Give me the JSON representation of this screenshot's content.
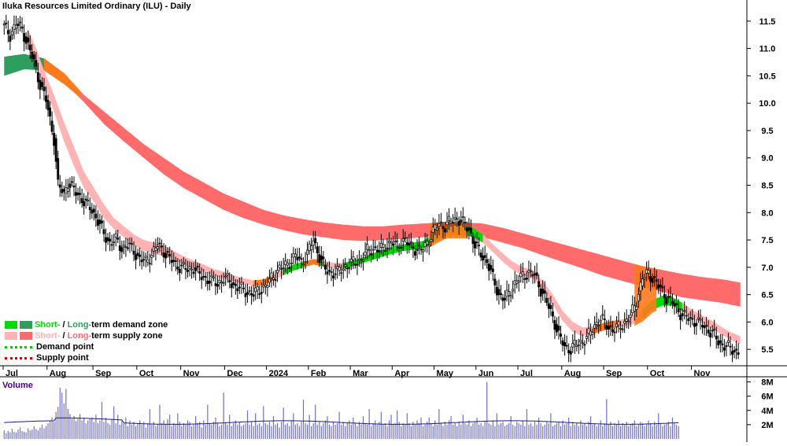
{
  "title": "Iluka Resources Limited Ordinary (ILU) - Daily",
  "legend": {
    "zone_short": "Short-",
    "zone_sep": " / ",
    "zone_long": "Long-",
    "demand_zone_suffix": "term demand zone",
    "supply_zone_suffix": "term supply zone",
    "demand_point": "Demand point",
    "supply_point": "Supply point"
  },
  "colors": {
    "short_demand": "#00dd00",
    "long_demand": "#2e9e5e",
    "short_supply": "#ffb3b3",
    "long_supply": "#ff6b6b",
    "overlap": "#ff7a1a",
    "demand_point": "#00cc00",
    "supply_point": "#dd0000",
    "volume_bar": "#7070cc",
    "volume_avg": "#1a1a8c",
    "volume_label": "#4b0082"
  },
  "volume_label": "Volume",
  "chart_data": {
    "type": "candlestick",
    "title": "Iluka Resources Limited Ordinary (ILU) - Daily",
    "price_axis": {
      "ylim": [
        5.2,
        11.8
      ],
      "ticks": [
        "11.5",
        "11.0",
        "10.5",
        "10.0",
        "9.5",
        "9.0",
        "8.5",
        "8.0",
        "7.5",
        "7.0",
        "6.5",
        "6.0",
        "5.5"
      ]
    },
    "volume_axis": {
      "ylim": [
        0,
        8500000
      ],
      "ticks": [
        "8M",
        "6M",
        "4M",
        "2M"
      ]
    },
    "months": [
      "Jul",
      "Aug",
      "Sep",
      "Oct",
      "Nov",
      "Dec",
      "2024",
      "Feb",
      "Mar",
      "Apr",
      "May",
      "Jun",
      "Jul",
      "Aug",
      "Sep",
      "Oct",
      "Nov"
    ],
    "month_start_bar": [
      0,
      22,
      45,
      67,
      89,
      111,
      132,
      153,
      174,
      195,
      216,
      237,
      258,
      280,
      301,
      323,
      345
    ],
    "price_points": [
      [
        0,
        11.4
      ],
      [
        3,
        11.25
      ],
      [
        6,
        11.45
      ],
      [
        9,
        11.35
      ],
      [
        12,
        11.05
      ],
      [
        15,
        10.75
      ],
      [
        18,
        10.35
      ],
      [
        21,
        10.05
      ],
      [
        23,
        9.7
      ],
      [
        25,
        9.35
      ],
      [
        27,
        8.5
      ],
      [
        30,
        8.35
      ],
      [
        32,
        8.55
      ],
      [
        35,
        8.4
      ],
      [
        38,
        8.3
      ],
      [
        41,
        8.15
      ],
      [
        44,
        8.05
      ],
      [
        47,
        7.85
      ],
      [
        50,
        7.6
      ],
      [
        53,
        7.45
      ],
      [
        56,
        7.5
      ],
      [
        59,
        7.35
      ],
      [
        62,
        7.4
      ],
      [
        65,
        7.3
      ],
      [
        68,
        7.15
      ],
      [
        71,
        7.1
      ],
      [
        74,
        7.25
      ],
      [
        77,
        7.4
      ],
      [
        80,
        7.3
      ],
      [
        83,
        7.15
      ],
      [
        86,
        7.05
      ],
      [
        89,
        7.0
      ],
      [
        92,
        6.95
      ],
      [
        95,
        7.0
      ],
      [
        98,
        6.85
      ],
      [
        101,
        6.8
      ],
      [
        104,
        6.75
      ],
      [
        107,
        6.7
      ],
      [
        110,
        6.8
      ],
      [
        113,
        6.75
      ],
      [
        116,
        6.65
      ],
      [
        119,
        6.6
      ],
      [
        122,
        6.55
      ],
      [
        125,
        6.5
      ],
      [
        128,
        6.6
      ],
      [
        131,
        6.65
      ],
      [
        134,
        6.8
      ],
      [
        137,
        6.95
      ],
      [
        140,
        7.0
      ],
      [
        143,
        7.1
      ],
      [
        146,
        7.2
      ],
      [
        149,
        7.1
      ],
      [
        152,
        7.25
      ],
      [
        155,
        7.5
      ],
      [
        158,
        7.2
      ],
      [
        161,
        6.95
      ],
      [
        164,
        6.9
      ],
      [
        167,
        6.9
      ],
      [
        170,
        7.0
      ],
      [
        173,
        7.05
      ],
      [
        176,
        7.1
      ],
      [
        179,
        7.15
      ],
      [
        182,
        7.3
      ],
      [
        185,
        7.35
      ],
      [
        188,
        7.3
      ],
      [
        191,
        7.4
      ],
      [
        194,
        7.45
      ],
      [
        197,
        7.4
      ],
      [
        200,
        7.5
      ],
      [
        203,
        7.4
      ],
      [
        206,
        7.35
      ],
      [
        209,
        7.3
      ],
      [
        212,
        7.45
      ],
      [
        215,
        7.65
      ],
      [
        218,
        7.8
      ],
      [
        221,
        7.75
      ],
      [
        224,
        7.85
      ],
      [
        227,
        7.9
      ],
      [
        230,
        7.8
      ],
      [
        233,
        7.7
      ],
      [
        236,
        7.4
      ],
      [
        239,
        7.25
      ],
      [
        242,
        7.1
      ],
      [
        245,
        6.8
      ],
      [
        248,
        6.5
      ],
      [
        251,
        6.4
      ],
      [
        254,
        6.6
      ],
      [
        257,
        6.75
      ],
      [
        260,
        6.85
      ],
      [
        263,
        6.9
      ],
      [
        266,
        6.85
      ],
      [
        269,
        6.6
      ],
      [
        272,
        6.35
      ],
      [
        275,
        6.1
      ],
      [
        278,
        5.75
      ],
      [
        281,
        5.55
      ],
      [
        284,
        5.5
      ],
      [
        287,
        5.6
      ],
      [
        290,
        5.65
      ],
      [
        293,
        5.75
      ],
      [
        296,
        5.95
      ],
      [
        299,
        6.05
      ],
      [
        302,
        5.95
      ],
      [
        305,
        5.85
      ],
      [
        308,
        5.9
      ],
      [
        311,
        6.0
      ],
      [
        314,
        6.1
      ],
      [
        317,
        6.4
      ],
      [
        320,
        6.8
      ],
      [
        323,
        6.9
      ],
      [
        326,
        6.75
      ],
      [
        329,
        6.6
      ],
      [
        332,
        6.45
      ],
      [
        335,
        6.35
      ],
      [
        338,
        6.2
      ],
      [
        341,
        6.1
      ],
      [
        344,
        6.05
      ],
      [
        347,
        6.0
      ],
      [
        350,
        5.95
      ],
      [
        353,
        5.85
      ],
      [
        356,
        5.75
      ],
      [
        359,
        5.6
      ],
      [
        362,
        5.55
      ],
      [
        365,
        5.5
      ],
      [
        368,
        5.45
      ]
    ],
    "candles_omitted_note": "",
    "short_term_zone": [
      [
        12,
        11.35,
        11.0
      ],
      [
        16,
        11.0,
        10.75
      ],
      [
        20,
        10.6,
        10.3
      ],
      [
        25,
        10.15,
        9.85
      ],
      [
        30,
        9.65,
        9.3
      ],
      [
        35,
        9.2,
        8.85
      ],
      [
        40,
        8.75,
        8.45
      ],
      [
        45,
        8.45,
        8.2
      ],
      [
        50,
        8.15,
        7.9
      ],
      [
        55,
        7.9,
        7.7
      ],
      [
        60,
        7.75,
        7.55
      ],
      [
        65,
        7.6,
        7.4
      ],
      [
        70,
        7.5,
        7.3
      ],
      [
        75,
        7.45,
        7.25
      ],
      [
        80,
        7.4,
        7.2
      ],
      [
        85,
        7.3,
        7.15
      ],
      [
        90,
        7.2,
        7.05
      ],
      [
        95,
        7.12,
        6.98
      ],
      [
        100,
        7.05,
        6.92
      ],
      [
        105,
        6.97,
        6.85
      ],
      [
        110,
        6.92,
        6.8
      ],
      [
        115,
        6.85,
        6.74
      ],
      [
        120,
        6.8,
        6.7
      ],
      [
        125,
        6.76,
        6.66
      ],
      [
        130,
        6.78,
        6.68
      ],
      [
        135,
        6.86,
        6.76
      ],
      [
        140,
        6.96,
        6.86
      ],
      [
        145,
        7.05,
        6.94
      ],
      [
        150,
        7.1,
        7.0
      ],
      [
        155,
        7.15,
        7.05
      ],
      [
        160,
        7.12,
        7.02
      ],
      [
        165,
        7.08,
        6.98
      ],
      [
        170,
        7.08,
        6.98
      ],
      [
        175,
        7.12,
        7.02
      ],
      [
        180,
        7.18,
        7.08
      ],
      [
        185,
        7.26,
        7.14
      ],
      [
        190,
        7.32,
        7.2
      ],
      [
        195,
        7.38,
        7.25
      ],
      [
        200,
        7.42,
        7.3
      ],
      [
        205,
        7.45,
        7.32
      ],
      [
        210,
        7.48,
        7.35
      ],
      [
        215,
        7.6,
        7.45
      ],
      [
        220,
        7.7,
        7.55
      ],
      [
        225,
        7.78,
        7.62
      ],
      [
        230,
        7.78,
        7.62
      ],
      [
        235,
        7.72,
        7.56
      ],
      [
        240,
        7.6,
        7.45
      ],
      [
        245,
        7.42,
        7.28
      ],
      [
        250,
        7.25,
        7.1
      ],
      [
        255,
        7.1,
        6.95
      ],
      [
        260,
        7.0,
        6.85
      ],
      [
        265,
        6.95,
        6.8
      ],
      [
        270,
        6.75,
        6.6
      ],
      [
        275,
        6.5,
        6.32
      ],
      [
        280,
        6.2,
        6.02
      ],
      [
        285,
        6.0,
        5.82
      ],
      [
        290,
        5.9,
        5.74
      ],
      [
        295,
        5.92,
        5.78
      ],
      [
        300,
        5.98,
        5.84
      ],
      [
        305,
        6.02,
        5.88
      ],
      [
        310,
        6.05,
        5.92
      ],
      [
        315,
        6.1,
        5.96
      ],
      [
        320,
        6.22,
        6.06
      ],
      [
        325,
        6.4,
        6.22
      ],
      [
        330,
        6.48,
        6.3
      ],
      [
        335,
        6.45,
        6.3
      ],
      [
        340,
        6.35,
        6.2
      ],
      [
        345,
        6.22,
        6.08
      ],
      [
        350,
        6.12,
        5.98
      ],
      [
        355,
        6.02,
        5.88
      ],
      [
        360,
        5.9,
        5.76
      ],
      [
        365,
        5.8,
        5.66
      ],
      [
        369,
        5.74,
        5.6
      ]
    ],
    "long_term_zone": [
      [
        0,
        10.85,
        10.5
      ],
      [
        10,
        10.9,
        10.62
      ],
      [
        20,
        10.82,
        10.6
      ],
      [
        30,
        10.55,
        10.35
      ],
      [
        35,
        10.35,
        10.2
      ],
      [
        40,
        10.15,
        10.02
      ],
      [
        50,
        9.85,
        9.62
      ],
      [
        60,
        9.55,
        9.3
      ],
      [
        70,
        9.25,
        9.0
      ],
      [
        80,
        9.0,
        8.7
      ],
      [
        90,
        8.75,
        8.45
      ],
      [
        100,
        8.55,
        8.25
      ],
      [
        110,
        8.35,
        8.05
      ],
      [
        120,
        8.2,
        7.9
      ],
      [
        130,
        8.05,
        7.78
      ],
      [
        140,
        7.95,
        7.68
      ],
      [
        150,
        7.88,
        7.6
      ],
      [
        160,
        7.82,
        7.55
      ],
      [
        170,
        7.78,
        7.5
      ],
      [
        180,
        7.75,
        7.48
      ],
      [
        190,
        7.75,
        7.5
      ],
      [
        200,
        7.78,
        7.52
      ],
      [
        210,
        7.8,
        7.55
      ],
      [
        220,
        7.82,
        7.58
      ],
      [
        230,
        7.82,
        7.58
      ],
      [
        240,
        7.8,
        7.55
      ],
      [
        250,
        7.72,
        7.45
      ],
      [
        260,
        7.62,
        7.35
      ],
      [
        270,
        7.52,
        7.22
      ],
      [
        280,
        7.42,
        7.1
      ],
      [
        290,
        7.32,
        6.98
      ],
      [
        300,
        7.22,
        6.85
      ],
      [
        310,
        7.12,
        6.75
      ],
      [
        320,
        7.02,
        6.65
      ],
      [
        330,
        6.95,
        6.55
      ],
      [
        340,
        6.88,
        6.45
      ],
      [
        350,
        6.82,
        6.4
      ],
      [
        360,
        6.78,
        6.35
      ],
      [
        369,
        6.72,
        6.28
      ]
    ],
    "short_zone_state": [
      [
        12,
        "supply"
      ],
      [
        130,
        "supply"
      ],
      [
        140,
        "demand"
      ],
      [
        160,
        "supply"
      ],
      [
        170,
        "demand"
      ],
      [
        240,
        "supply"
      ],
      [
        300,
        "supply"
      ],
      [
        320,
        "demand"
      ],
      [
        340,
        "supply"
      ]
    ],
    "long_zone_state": [
      [
        0,
        "demand"
      ],
      [
        20,
        "supply"
      ]
    ],
    "volume": [
      1.2,
      0.8,
      1.1,
      0.9,
      1.4,
      1.0,
      0.9,
      1.3,
      1.6,
      1.1,
      1.0,
      0.9,
      1.5,
      1.2,
      1.3,
      1.8,
      1.4,
      1.2,
      1.6,
      2.0,
      1.5,
      1.8,
      2.2,
      2.6,
      3.0,
      2.4,
      3.8,
      4.5,
      7.2,
      6.5,
      5.0,
      7.0,
      4.2,
      3.5,
      2.8,
      3.2,
      2.5,
      2.8,
      3.5,
      2.6,
      3.0,
      2.2,
      2.6,
      2.8,
      3.0,
      2.4,
      3.4,
      2.2,
      2.6,
      5.2,
      2.4,
      3.0,
      2.2,
      2.0,
      2.8,
      4.6,
      2.2,
      3.4,
      2.0,
      2.5,
      2.2,
      3.0,
      1.8,
      2.6,
      2.0,
      2.4,
      1.8,
      2.2,
      2.6,
      2.0,
      2.4,
      1.6,
      2.2,
      4.2,
      2.0,
      2.4,
      1.8,
      2.0,
      4.8,
      2.2,
      2.6,
      2.0,
      2.8,
      3.4,
      1.8,
      2.2,
      2.0,
      3.6,
      2.4,
      1.8,
      2.2,
      2.0,
      2.6,
      2.4,
      1.8,
      2.0,
      3.2,
      2.2,
      2.4,
      1.6,
      2.6,
      2.0,
      4.8,
      2.2,
      2.0,
      2.4,
      3.0,
      2.2,
      1.8,
      2.0,
      6.5,
      2.2,
      2.0,
      3.4,
      1.8,
      2.2,
      2.6,
      2.0,
      2.4,
      1.8,
      2.0,
      2.2,
      4.0,
      2.0,
      2.4,
      1.8,
      3.6,
      2.0,
      2.2,
      1.8,
      4.6,
      2.2,
      2.0,
      2.4,
      1.8,
      3.2,
      2.0,
      2.2,
      1.6,
      2.4,
      4.4,
      2.0,
      2.2,
      1.8,
      2.6,
      3.6,
      2.0,
      2.2,
      1.8,
      2.4,
      5.5,
      2.2,
      2.0,
      3.4,
      1.8,
      2.2,
      4.8,
      2.0,
      2.4,
      1.8,
      2.2,
      2.6,
      3.2,
      2.0,
      1.8,
      2.4,
      2.0,
      2.2,
      3.8,
      2.0,
      2.4,
      1.8,
      2.2,
      2.6,
      2.0,
      3.0,
      2.2,
      1.8,
      2.4,
      2.0,
      3.2,
      2.2,
      2.0,
      4.2,
      1.8,
      2.2,
      2.6,
      2.0,
      2.4,
      3.8,
      2.0,
      2.2,
      1.8,
      2.6,
      3.4,
      2.0,
      2.2,
      4.0,
      2.4,
      1.8,
      2.2,
      2.0,
      3.6,
      2.2,
      1.8,
      2.4,
      2.0,
      2.6,
      2.2,
      3.0,
      1.8,
      2.0,
      2.4,
      3.0,
      2.2,
      1.8,
      2.6,
      2.0,
      4.2,
      2.2,
      1.8,
      2.4,
      2.0,
      2.6,
      3.2,
      2.0,
      2.2,
      1.8,
      2.4,
      2.0,
      3.4,
      2.2,
      2.0,
      2.6,
      1.8,
      2.2,
      2.4,
      3.0,
      2.0,
      2.2,
      1.8,
      2.4,
      8.0,
      2.2,
      2.0,
      2.6,
      1.8,
      3.6,
      2.0,
      2.2,
      2.4,
      1.8,
      2.0,
      2.2,
      3.2,
      2.0,
      1.8,
      2.4,
      2.2,
      2.0,
      2.6,
      1.8,
      4.2,
      2.0,
      2.2,
      1.8,
      2.4,
      2.0,
      3.0,
      2.2,
      1.8,
      2.0,
      2.4,
      2.2,
      3.6,
      1.8,
      2.0,
      2.2,
      2.4,
      1.8,
      2.6,
      2.0,
      2.2,
      3.0,
      1.8,
      2.4,
      2.0,
      2.2,
      1.8,
      2.6,
      2.0,
      2.2,
      1.8,
      2.4,
      3.2,
      2.0,
      2.2,
      1.8,
      2.0,
      2.6,
      1.8,
      2.2,
      5.6,
      2.0,
      2.4,
      1.8,
      2.2,
      2.0,
      2.6,
      1.8,
      2.2,
      2.0,
      2.4,
      1.8,
      2.0,
      2.2,
      2.6,
      1.8,
      2.0,
      2.4,
      2.2,
      1.8,
      2.0,
      2.6,
      2.2,
      1.8,
      2.4,
      2.0,
      3.6,
      2.2,
      1.8,
      2.0,
      2.2,
      2.4,
      1.8,
      3.0,
      2.2,
      2.0,
      1.8
    ],
    "volume_avg_level": 2.3
  }
}
